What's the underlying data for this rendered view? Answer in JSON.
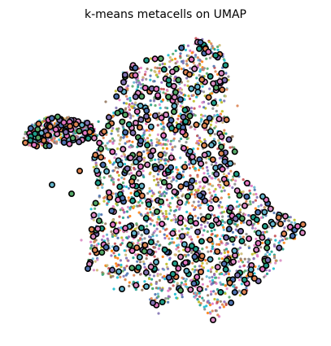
{
  "chart_data": {
    "type": "scatter",
    "title": "k-means metacells on UMAP",
    "xlabel": "",
    "ylabel": "",
    "axes_visible": false,
    "grid": false,
    "legend": false,
    "series": [
      {
        "role": "cells",
        "marker": "small dot",
        "palette": [
          "#1f9e89",
          "#4c72b0",
          "#dd8452",
          "#55a868",
          "#c44e52",
          "#8172b3",
          "#937860",
          "#da8bc3",
          "#8c8c8c",
          "#ccb974",
          "#64b5cd",
          "#e377c2",
          "#ff7f0e",
          "#9467bd",
          "#17becf",
          "#bcbd22"
        ]
      },
      {
        "role": "metacells",
        "marker": "circle with black outline",
        "palette": [
          "#da8bc3",
          "#e377c2",
          "#4c72b0",
          "#1f9e89",
          "#64b5cd",
          "#55a868",
          "#8172b3",
          "#dd8452"
        ]
      }
    ]
  }
}
